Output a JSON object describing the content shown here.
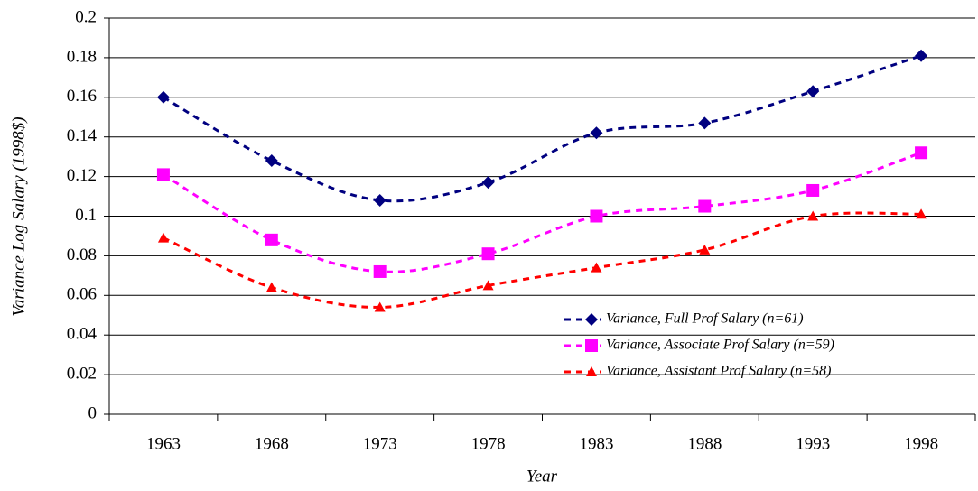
{
  "chart_data": {
    "type": "line",
    "x_label": "Year",
    "y_label": "Variance Log Salary (1998$)",
    "categories": [
      "1963",
      "1968",
      "1973",
      "1978",
      "1983",
      "1988",
      "1993",
      "1998"
    ],
    "series": [
      {
        "name": "Variance, Full Prof Salary (n=61)",
        "color": "#000080",
        "marker": "diamond",
        "values": [
          0.16,
          0.128,
          0.108,
          0.117,
          0.142,
          0.147,
          0.163,
          0.181
        ]
      },
      {
        "name": "Variance, Associate Prof Salary (n=59)",
        "color": "#ff00ff",
        "marker": "square",
        "values": [
          0.121,
          0.088,
          0.072,
          0.081,
          0.1,
          0.105,
          0.113,
          0.132
        ]
      },
      {
        "name": "Variance, Assistant Prof Salary (n=58)",
        "color": "#ff0000",
        "marker": "triangle",
        "values": [
          0.089,
          0.064,
          0.054,
          0.065,
          0.074,
          0.083,
          0.1,
          0.101
        ]
      }
    ],
    "ylim": [
      0,
      0.2
    ],
    "yticks": [
      0,
      0.02,
      0.04,
      0.06,
      0.08,
      0.1,
      0.12,
      0.14,
      0.16,
      0.18,
      0.2
    ],
    "grid": true,
    "legend": "lower right"
  }
}
